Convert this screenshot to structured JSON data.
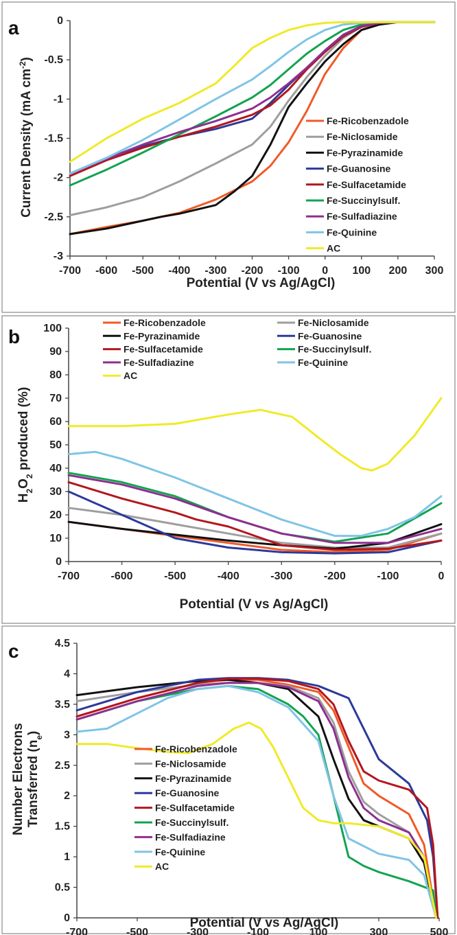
{
  "series_names": [
    "Fe-Ricobenzadole",
    "Fe-Niclosamide",
    "Fe-Pyrazinamide",
    "Fe-Guanosine",
    "Fe-Sulfacetamide",
    "Fe-Succinylsulf.",
    "Fe-Sulfadiazine",
    "Fe-Quinine",
    "AC"
  ],
  "series_colors": [
    "#f05a28",
    "#9e9e9e",
    "#111111",
    "#2b3a9a",
    "#b3161d",
    "#12a350",
    "#8e2f91",
    "#7fc4e6",
    "#f0ea28"
  ],
  "chart_data": [
    {
      "panel": "a",
      "type": "line",
      "xlabel": "Potential (V vs Ag/AgCl)",
      "ylabel": "Current Density (mA cm-2)",
      "xlim": [
        -700,
        300
      ],
      "ylim": [
        -3,
        0
      ],
      "xticks": [
        "-700",
        "-600",
        "-500",
        "-400",
        "-300",
        "-200",
        "-100",
        "0",
        "100",
        "200",
        "300"
      ],
      "yticks": [
        "0",
        "-0.5",
        "-1",
        "-1.5",
        "-2",
        "-2.5",
        "-3"
      ],
      "legend_position": "right",
      "series": [
        {
          "name": "Fe-Ricobenzadole",
          "x": [
            -700,
            -600,
            -500,
            -400,
            -300,
            -200,
            -150,
            -100,
            -50,
            0,
            50,
            100,
            150,
            200,
            250,
            300
          ],
          "y": [
            -2.72,
            -2.63,
            -2.55,
            -2.45,
            -2.28,
            -2.05,
            -1.85,
            -1.55,
            -1.15,
            -0.68,
            -0.35,
            -0.12,
            -0.04,
            -0.02,
            -0.02,
            -0.02
          ]
        },
        {
          "name": "Fe-Niclosamide",
          "x": [
            -700,
            -600,
            -500,
            -400,
            -300,
            -200,
            -150,
            -100,
            -50,
            0,
            50,
            100,
            150,
            200,
            250,
            300
          ],
          "y": [
            -2.48,
            -2.38,
            -2.25,
            -2.05,
            -1.82,
            -1.58,
            -1.35,
            -1.02,
            -0.72,
            -0.45,
            -0.22,
            -0.08,
            -0.03,
            -0.02,
            -0.02,
            -0.02
          ]
        },
        {
          "name": "Fe-Pyrazinamide",
          "x": [
            -700,
            -600,
            -500,
            -450,
            -400,
            -300,
            -250,
            -200,
            -150,
            -100,
            -50,
            0,
            50,
            100,
            150,
            200,
            250,
            300
          ],
          "y": [
            -2.72,
            -2.65,
            -2.55,
            -2.5,
            -2.46,
            -2.35,
            -2.18,
            -1.98,
            -1.58,
            -1.1,
            -0.8,
            -0.52,
            -0.3,
            -0.12,
            -0.05,
            -0.02,
            -0.02,
            -0.02
          ]
        },
        {
          "name": "Fe-Guanosine",
          "x": [
            -700,
            -600,
            -500,
            -400,
            -300,
            -200,
            -150,
            -100,
            -50,
            0,
            50,
            100,
            150,
            200,
            250,
            300
          ],
          "y": [
            -1.95,
            -1.75,
            -1.6,
            -1.48,
            -1.38,
            -1.25,
            -1.05,
            -0.82,
            -0.6,
            -0.38,
            -0.18,
            -0.07,
            -0.03,
            -0.02,
            -0.02,
            -0.02
          ]
        },
        {
          "name": "Fe-Sulfacetamide",
          "x": [
            -700,
            -600,
            -500,
            -400,
            -300,
            -200,
            -150,
            -100,
            -50,
            0,
            50,
            100,
            150,
            200,
            250,
            300
          ],
          "y": [
            -1.98,
            -1.78,
            -1.62,
            -1.48,
            -1.35,
            -1.2,
            -1.08,
            -0.88,
            -0.62,
            -0.4,
            -0.2,
            -0.08,
            -0.03,
            -0.02,
            -0.02,
            -0.02
          ]
        },
        {
          "name": "Fe-Succinylsulf.",
          "x": [
            -700,
            -600,
            -500,
            -400,
            -300,
            -200,
            -150,
            -100,
            -50,
            0,
            50,
            100,
            150,
            200,
            250,
            300
          ],
          "y": [
            -2.1,
            -1.9,
            -1.68,
            -1.45,
            -1.22,
            -0.98,
            -0.82,
            -0.62,
            -0.42,
            -0.26,
            -0.12,
            -0.05,
            -0.02,
            -0.02,
            -0.02,
            -0.02
          ]
        },
        {
          "name": "Fe-Sulfadiazine",
          "x": [
            -700,
            -600,
            -500,
            -400,
            -300,
            -200,
            -150,
            -100,
            -50,
            0,
            50,
            100,
            150,
            200,
            250,
            300
          ],
          "y": [
            -1.95,
            -1.76,
            -1.58,
            -1.42,
            -1.28,
            -1.12,
            -0.98,
            -0.8,
            -0.6,
            -0.38,
            -0.18,
            -0.07,
            -0.03,
            -0.02,
            -0.02,
            -0.02
          ]
        },
        {
          "name": "Fe-Quinine",
          "x": [
            -700,
            -600,
            -500,
            -400,
            -300,
            -200,
            -150,
            -100,
            -50,
            0,
            50,
            100,
            150,
            200,
            250,
            300
          ],
          "y": [
            -1.95,
            -1.75,
            -1.52,
            -1.26,
            -1.0,
            -0.75,
            -0.58,
            -0.4,
            -0.24,
            -0.12,
            -0.05,
            -0.03,
            -0.02,
            -0.02,
            -0.02,
            -0.02
          ]
        },
        {
          "name": "AC",
          "x": [
            -700,
            -600,
            -500,
            -400,
            -300,
            -250,
            -200,
            -150,
            -100,
            -50,
            0,
            50,
            100,
            150,
            200,
            250,
            300
          ],
          "y": [
            -1.8,
            -1.5,
            -1.25,
            -1.05,
            -0.8,
            -0.58,
            -0.35,
            -0.22,
            -0.12,
            -0.06,
            -0.03,
            -0.02,
            -0.02,
            -0.02,
            -0.02,
            -0.02,
            -0.02
          ]
        }
      ]
    },
    {
      "panel": "b",
      "type": "line",
      "xlabel": "Potential (V vs Ag/AgCl)",
      "ylabel": "H2O2 produced (%)",
      "xlim": [
        -700,
        0
      ],
      "ylim": [
        0,
        100
      ],
      "xticks": [
        "-700",
        "-600",
        "-500",
        "-400",
        "-300",
        "-200",
        "-100",
        "0"
      ],
      "yticks": [
        "0",
        "10",
        "20",
        "30",
        "40",
        "50",
        "60",
        "70",
        "80",
        "90",
        "100"
      ],
      "legend_position": "top, two columns",
      "series": [
        {
          "name": "Fe-Ricobenzadole",
          "x": [
            -700,
            -600,
            -500,
            -400,
            -300,
            -200,
            -100,
            0
          ],
          "y": [
            17,
            14,
            11,
            8,
            5,
            4,
            5,
            12
          ]
        },
        {
          "name": "Fe-Niclosamide",
          "x": [
            -700,
            -600,
            -500,
            -400,
            -300,
            -200,
            -100,
            0
          ],
          "y": [
            23,
            20,
            16,
            12,
            8,
            6,
            6,
            12
          ]
        },
        {
          "name": "Fe-Pyrazinamide",
          "x": [
            -700,
            -600,
            -500,
            -400,
            -300,
            -200,
            -100,
            0
          ],
          "y": [
            17,
            14,
            11.5,
            9,
            7,
            5.5,
            8,
            16
          ]
        },
        {
          "name": "Fe-Guanosine",
          "x": [
            -700,
            -600,
            -500,
            -400,
            -300,
            -200,
            -100,
            0
          ],
          "y": [
            30,
            20,
            10,
            6,
            4,
            3.5,
            4,
            9
          ]
        },
        {
          "name": "Fe-Sulfacetamide",
          "x": [
            -700,
            -600,
            -500,
            -460,
            -400,
            -300,
            -200,
            -100,
            0
          ],
          "y": [
            34,
            27,
            21,
            18,
            15,
            7,
            5,
            5.5,
            9
          ]
        },
        {
          "name": "Fe-Succinylsulf.",
          "x": [
            -700,
            -600,
            -500,
            -400,
            -300,
            -200,
            -100,
            0
          ],
          "y": [
            38,
            34,
            28,
            19,
            12,
            8.5,
            12,
            25
          ]
        },
        {
          "name": "Fe-Sulfadiazine",
          "x": [
            -700,
            -600,
            -500,
            -400,
            -300,
            -200,
            -100,
            0
          ],
          "y": [
            37,
            33,
            27,
            19,
            12,
            8,
            8,
            14
          ]
        },
        {
          "name": "Fe-Quinine",
          "x": [
            -700,
            -650,
            -600,
            -500,
            -400,
            -300,
            -200,
            -150,
            -100,
            -50,
            0
          ],
          "y": [
            46,
            47,
            44,
            36,
            27,
            18,
            11,
            11,
            14,
            19,
            28
          ]
        },
        {
          "name": "AC",
          "x": [
            -700,
            -600,
            -500,
            -400,
            -340,
            -280,
            -230,
            -190,
            -150,
            -130,
            -100,
            -50,
            0
          ],
          "y": [
            58,
            58,
            59,
            63,
            65,
            62,
            53,
            46,
            40,
            39,
            42,
            54,
            70
          ]
        }
      ]
    },
    {
      "panel": "c",
      "type": "line",
      "xlabel": "Potential (V vs Ag/AgCl)",
      "ylabel": "Number Electrons Transferred (ne)",
      "xlim": [
        -700,
        500
      ],
      "ylim": [
        0,
        4.5
      ],
      "xticks": [
        "-700",
        "-500",
        "-300",
        "-100",
        "100",
        "300",
        "500"
      ],
      "yticks": [
        "0",
        "0.5",
        "1",
        "1.5",
        "2",
        "2.5",
        "3",
        "3.5",
        "4",
        "4.5"
      ],
      "legend_position": "bottom-left",
      "series": [
        {
          "name": "Fe-Ricobenzadole",
          "x": [
            -700,
            -500,
            -300,
            -200,
            -100,
            0,
            100,
            150,
            200,
            250,
            300,
            400,
            450,
            490
          ],
          "y": [
            3.3,
            3.6,
            3.85,
            3.9,
            3.9,
            3.82,
            3.7,
            3.4,
            2.8,
            2.2,
            2.0,
            1.7,
            1.2,
            0
          ]
        },
        {
          "name": "Fe-Niclosamide",
          "x": [
            -700,
            -500,
            -300,
            -200,
            -100,
            0,
            100,
            150,
            200,
            250,
            300,
            400,
            450,
            490
          ],
          "y": [
            3.55,
            3.7,
            3.82,
            3.85,
            3.85,
            3.8,
            3.6,
            3.2,
            2.4,
            1.9,
            1.7,
            1.4,
            1.0,
            0
          ]
        },
        {
          "name": "Fe-Pyrazinamide",
          "x": [
            -700,
            -500,
            -300,
            -200,
            -100,
            0,
            100,
            150,
            200,
            250,
            300,
            400,
            450,
            490
          ],
          "y": [
            3.65,
            3.78,
            3.88,
            3.9,
            3.85,
            3.75,
            3.3,
            2.6,
            1.95,
            1.6,
            1.5,
            1.3,
            0.9,
            0
          ]
        },
        {
          "name": "Fe-Guanosine",
          "x": [
            -700,
            -500,
            -300,
            -200,
            -100,
            0,
            100,
            200,
            250,
            300,
            400,
            460,
            480,
            495
          ],
          "y": [
            3.4,
            3.7,
            3.9,
            3.93,
            3.93,
            3.9,
            3.8,
            3.6,
            3.1,
            2.6,
            2.2,
            1.6,
            1.0,
            0
          ]
        },
        {
          "name": "Fe-Sulfacetamide",
          "x": [
            -700,
            -500,
            -300,
            -200,
            -100,
            0,
            100,
            150,
            200,
            250,
            300,
            400,
            460,
            480,
            495
          ],
          "y": [
            3.3,
            3.6,
            3.85,
            3.92,
            3.92,
            3.88,
            3.75,
            3.5,
            2.9,
            2.4,
            2.25,
            2.1,
            1.8,
            1.2,
            0
          ]
        },
        {
          "name": "Fe-Succinylsulf.",
          "x": [
            -700,
            -500,
            -300,
            -200,
            -100,
            0,
            50,
            100,
            150,
            200,
            250,
            300,
            400,
            480,
            490
          ],
          "y": [
            3.25,
            3.55,
            3.75,
            3.8,
            3.75,
            3.5,
            3.3,
            3.0,
            2.0,
            1.0,
            0.85,
            0.75,
            0.6,
            0.45,
            0
          ]
        },
        {
          "name": "Fe-Sulfadiazine",
          "x": [
            -700,
            -500,
            -300,
            -200,
            -100,
            0,
            100,
            150,
            200,
            250,
            300,
            400,
            450,
            490
          ],
          "y": [
            3.25,
            3.55,
            3.8,
            3.85,
            3.85,
            3.78,
            3.55,
            3.1,
            2.3,
            1.8,
            1.6,
            1.4,
            1.0,
            0
          ]
        },
        {
          "name": "Fe-Quinine",
          "x": [
            -700,
            -600,
            -500,
            -400,
            -300,
            -200,
            -100,
            0,
            100,
            150,
            200,
            300,
            400,
            450,
            490
          ],
          "y": [
            3.05,
            3.1,
            3.35,
            3.6,
            3.75,
            3.8,
            3.7,
            3.45,
            2.9,
            2.0,
            1.3,
            1.05,
            0.95,
            0.7,
            0
          ]
        },
        {
          "name": "AC",
          "x": [
            -700,
            -600,
            -500,
            -400,
            -330,
            -250,
            -180,
            -130,
            -90,
            -50,
            0,
            50,
            100,
            150,
            200,
            300,
            400,
            450,
            490
          ],
          "y": [
            2.85,
            2.85,
            2.78,
            2.72,
            2.7,
            2.85,
            3.1,
            3.2,
            3.1,
            2.8,
            2.3,
            1.8,
            1.6,
            1.55,
            1.55,
            1.5,
            1.3,
            1.0,
            0
          ]
        }
      ],
      "legend_series_order": [
        0,
        1,
        2,
        3,
        4,
        5,
        6,
        7,
        8
      ]
    }
  ]
}
